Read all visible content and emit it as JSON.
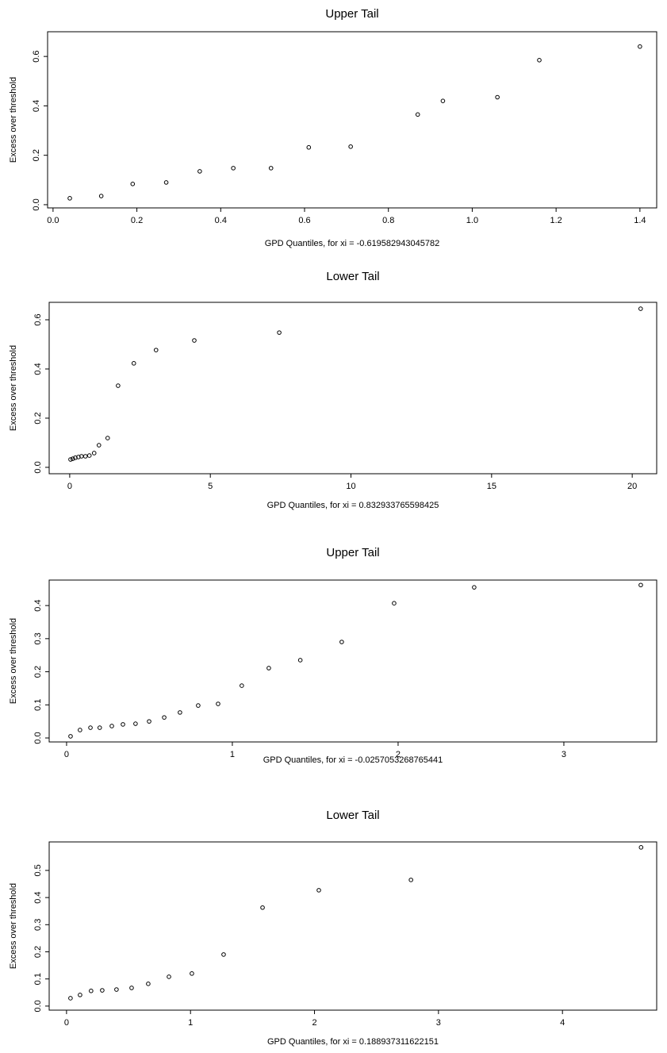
{
  "chart_data": [
    {
      "type": "scatter",
      "title": "Upper Tail",
      "x_label": "GPD Quantiles, for xi =  -0.619582943045782",
      "y_label": "Excess over threshold",
      "x": [
        0.04,
        0.115,
        0.19,
        0.27,
        0.35,
        0.43,
        0.52,
        0.61,
        0.71,
        0.87,
        0.93,
        1.06,
        1.16,
        1.4
      ],
      "values": [
        0.026,
        0.035,
        0.084,
        0.09,
        0.135,
        0.148,
        0.148,
        0.232,
        0.235,
        0.365,
        0.42,
        0.435,
        0.585,
        0.64
      ],
      "xlim": [
        -0.013,
        1.44
      ],
      "ylim": [
        -0.013,
        0.7
      ],
      "xticks": [
        {
          "value": 0,
          "label": "0.0"
        },
        0.2,
        0.4,
        0.6,
        0.8,
        {
          "value": 1,
          "label": "1.0"
        },
        1.2,
        1.4
      ],
      "yticks": [
        {
          "value": 0,
          "label": "0.0"
        },
        0.2,
        0.4,
        0.6
      ],
      "color": "#000000"
    },
    {
      "type": "scatter",
      "title": "Lower Tail",
      "x_label": "GPD Quantiles, for xi =  0.832933765598425",
      "y_label": "Excess over threshold",
      "x": [
        0.03,
        0.11,
        0.2,
        0.31,
        0.42,
        0.56,
        0.7,
        0.87,
        1.04,
        1.35,
        1.72,
        2.28,
        3.07,
        4.43,
        7.45,
        20.3
      ],
      "values": [
        0.032,
        0.035,
        0.039,
        0.042,
        0.045,
        0.045,
        0.048,
        0.058,
        0.09,
        0.119,
        0.332,
        0.423,
        0.477,
        0.516,
        0.548,
        0.645
      ],
      "xlim": [
        -0.73,
        20.87
      ],
      "ylim": [
        -0.026,
        0.671
      ],
      "xticks": [
        0,
        5,
        10,
        15,
        20
      ],
      "yticks": [
        {
          "value": 0,
          "label": "0.0"
        },
        0.2,
        0.4,
        0.6
      ],
      "color": "#000000"
    },
    {
      "type": "scatter",
      "title": "Upper Tail",
      "x_label": "GPD Quantiles, for xi =  -0.0257053268765441",
      "y_label": "Excess over threshold",
      "x": [
        0.024,
        0.081,
        0.144,
        0.2,
        0.273,
        0.34,
        0.416,
        0.498,
        0.589,
        0.684,
        0.794,
        0.914,
        1.057,
        1.22,
        1.41,
        1.66,
        1.976,
        2.459,
        3.464
      ],
      "values": [
        0.005,
        0.024,
        0.031,
        0.031,
        0.036,
        0.041,
        0.043,
        0.05,
        0.062,
        0.077,
        0.098,
        0.103,
        0.158,
        0.211,
        0.235,
        0.29,
        0.407,
        0.455,
        0.462
      ],
      "xlim": [
        -0.105,
        3.56
      ],
      "ylim": [
        -0.012,
        0.477
      ],
      "xticks": [
        0,
        1,
        2,
        3
      ],
      "yticks": [
        {
          "value": 0,
          "label": "0.0"
        },
        0.1,
        0.2,
        0.3,
        0.4
      ],
      "color": "#000000"
    },
    {
      "type": "scatter",
      "title": "Lower Tail",
      "x_label": "GPD Quantiles, for xi =  0.188937311622151",
      "y_label": "Excess over threshold",
      "x": [
        0.032,
        0.109,
        0.198,
        0.288,
        0.403,
        0.525,
        0.659,
        0.826,
        1.011,
        1.267,
        1.581,
        2.035,
        2.778,
        4.634
      ],
      "values": [
        0.029,
        0.041,
        0.056,
        0.058,
        0.061,
        0.067,
        0.082,
        0.108,
        0.12,
        0.19,
        0.363,
        0.427,
        0.465,
        0.585
      ],
      "xlim": [
        -0.14,
        4.76
      ],
      "ylim": [
        -0.015,
        0.605
      ],
      "xticks": [
        0,
        1,
        2,
        3,
        4
      ],
      "yticks": [
        {
          "value": 0,
          "label": "0.0"
        },
        0.1,
        0.2,
        0.3,
        0.4,
        0.5
      ],
      "color": "#000000"
    }
  ]
}
